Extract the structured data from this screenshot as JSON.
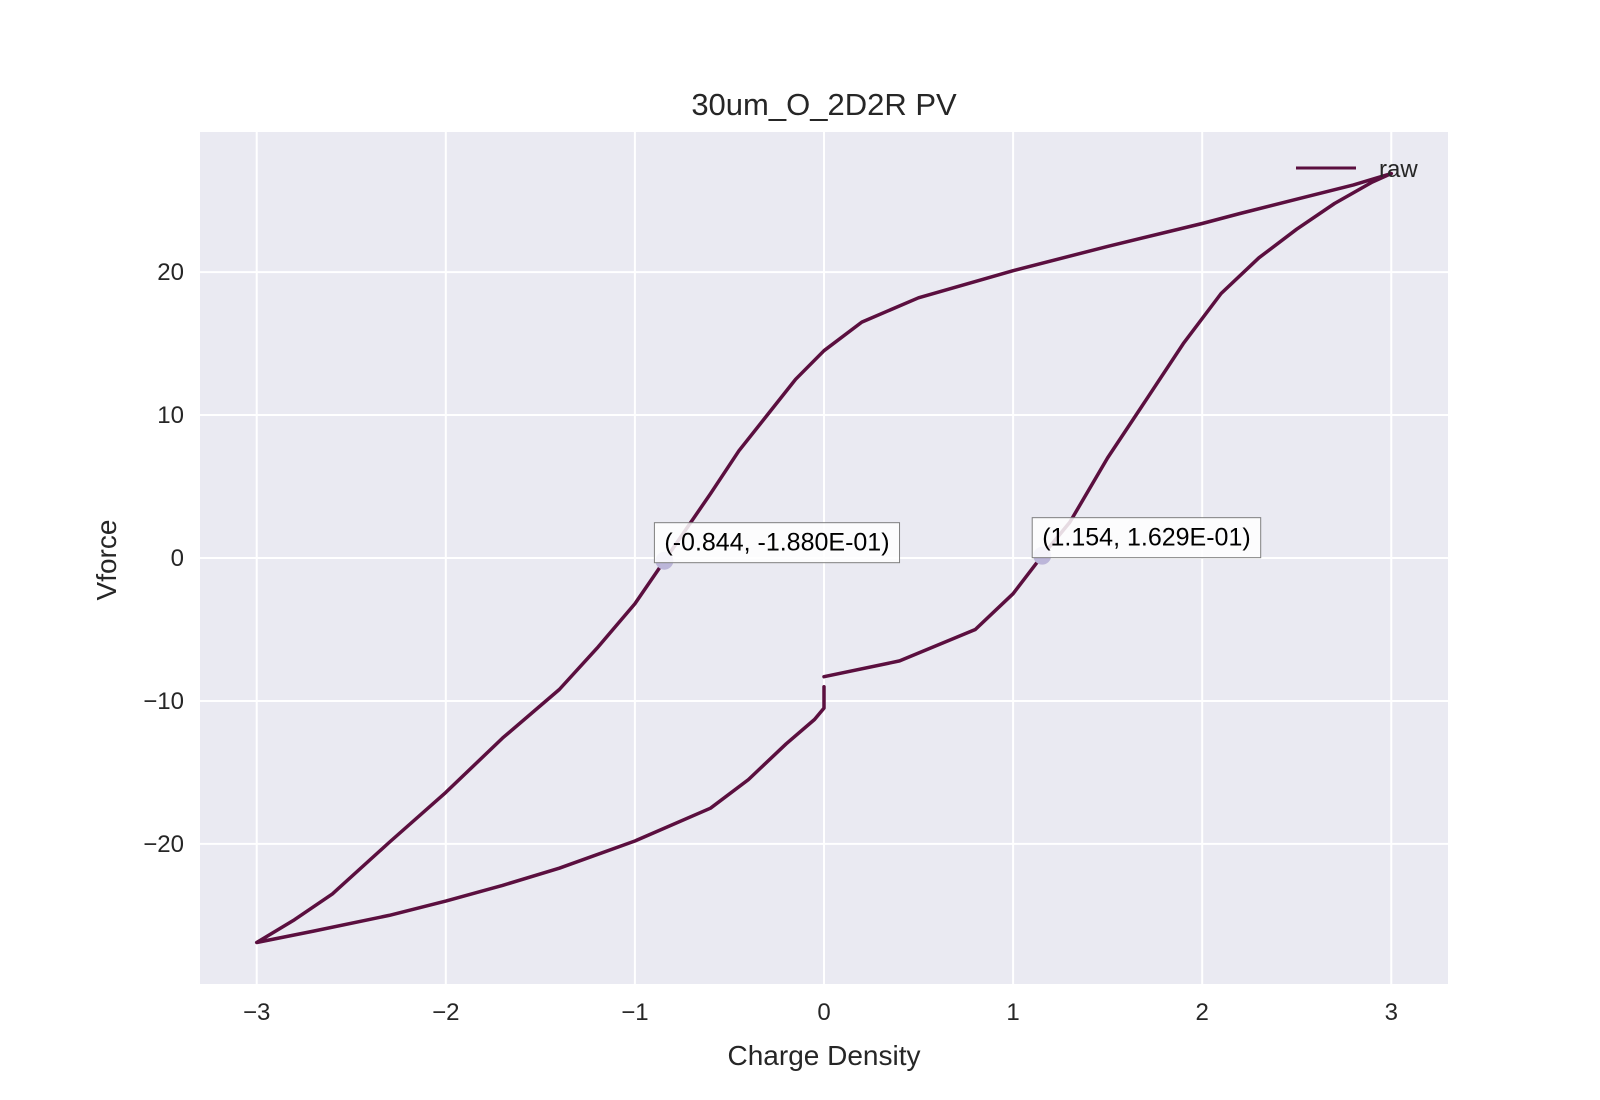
{
  "chart_data": {
    "type": "line",
    "title": "30um_O_2D2R PV",
    "xlabel": "Charge Density",
    "ylabel": "Vforce",
    "xlim": [
      -3.3,
      3.3
    ],
    "ylim": [
      -29.8,
      29.8
    ],
    "xticks": [
      -3,
      -2,
      -1,
      0,
      1,
      2,
      3
    ],
    "xtick_labels": [
      "−3",
      "−2",
      "−1",
      "0",
      "1",
      "2",
      "3"
    ],
    "yticks": [
      -20,
      -10,
      0,
      10,
      20
    ],
    "ytick_labels": [
      "−20",
      "−10",
      "0",
      "10",
      "20"
    ],
    "grid": true,
    "legend": {
      "position": "upper right",
      "entries": [
        "raw"
      ]
    },
    "colors": {
      "line": "#5b0f3f",
      "marker": "#bcb6d9",
      "plot_bg": "#eaeaf2",
      "grid": "#ffffff"
    },
    "series": [
      {
        "name": "raw",
        "x": [
          0.0,
          0.4,
          0.8,
          1.0,
          1.154,
          1.3,
          1.5,
          1.7,
          1.9,
          2.1,
          2.3,
          2.5,
          2.7,
          2.9,
          3.0,
          2.8,
          2.5,
          2.2,
          2.0,
          1.5,
          1.0,
          0.5,
          0.2,
          0.0,
          -0.15,
          -0.3,
          -0.45,
          -0.6,
          -0.844,
          -1.0,
          -1.2,
          -1.4,
          -1.7,
          -2.0,
          -2.3,
          -2.6,
          -2.8,
          -3.0,
          -2.7,
          -2.3,
          -2.0,
          -1.7,
          -1.4,
          -1.0,
          -0.6,
          -0.4,
          -0.2,
          -0.05,
          0.0,
          0.0
        ],
        "y": [
          -8.3,
          -7.2,
          -5.0,
          -2.5,
          0.163,
          2.5,
          7.0,
          11.0,
          15.0,
          18.5,
          21.0,
          23.0,
          24.8,
          26.3,
          26.9,
          26.1,
          25.1,
          24.1,
          23.4,
          21.8,
          20.1,
          18.2,
          16.5,
          14.5,
          12.5,
          10.0,
          7.5,
          4.5,
          -0.188,
          -3.2,
          -6.3,
          -9.2,
          -12.6,
          -16.4,
          -19.9,
          -23.5,
          -25.3,
          -26.9,
          -26.1,
          -25.0,
          -24.0,
          -22.9,
          -21.7,
          -19.8,
          -17.5,
          -15.5,
          -13.0,
          -11.3,
          -10.5,
          -9.0
        ]
      }
    ],
    "annotations": [
      {
        "x": -0.844,
        "y": -0.188,
        "label": "(-0.844, -1.880E-01)"
      },
      {
        "x": 1.154,
        "y": 0.163,
        "label": "(1.154, 1.629E-01)"
      }
    ]
  }
}
